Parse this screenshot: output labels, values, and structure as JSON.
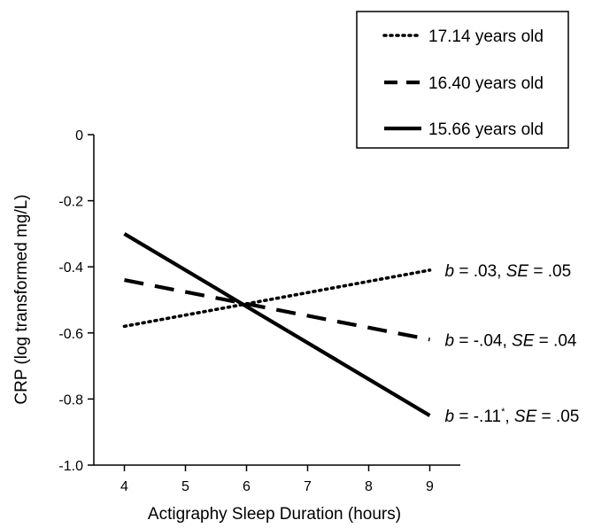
{
  "chart_data": {
    "type": "line",
    "xlabel": "Actigraphy Sleep Duration (hours)",
    "ylabel": "CRP (log transformed mg/L)",
    "xlim": [
      3.5,
      9.5
    ],
    "ylim": [
      -1.0,
      0
    ],
    "xticks": [
      "4",
      "5",
      "6",
      "7",
      "8",
      "9"
    ],
    "yticks": [
      "0",
      "-0.2",
      "-0.4",
      "-0.6",
      "-0.8",
      "-1.0"
    ],
    "xtick_values": [
      4,
      5,
      6,
      7,
      8,
      9
    ],
    "ytick_values": [
      0,
      -0.2,
      -0.4,
      -0.6,
      -0.8,
      -1.0
    ],
    "grid": false,
    "legend_position": "top-right",
    "series": [
      {
        "name": "17.14 years old",
        "style": "dotted",
        "x": [
          4,
          9
        ],
        "y": [
          -0.58,
          -0.41
        ],
        "annotation": {
          "b": ".03",
          "b_sup": "",
          "se": ".05"
        }
      },
      {
        "name": "16.40 years old",
        "style": "dashed",
        "x": [
          4,
          9
        ],
        "y": [
          -0.44,
          -0.62
        ],
        "annotation": {
          "b": "-.04",
          "b_sup": "",
          "se": ".04"
        }
      },
      {
        "name": "15.66 years old",
        "style": "solid",
        "x": [
          4,
          9
        ],
        "y": [
          -0.3,
          -0.85
        ],
        "annotation": {
          "b": "-.11",
          "b_sup": "*",
          "se": ".05"
        }
      }
    ],
    "annotation_labels": {
      "b": "b",
      "se": "SE",
      "eq": " = ",
      "sep": ", "
    }
  }
}
